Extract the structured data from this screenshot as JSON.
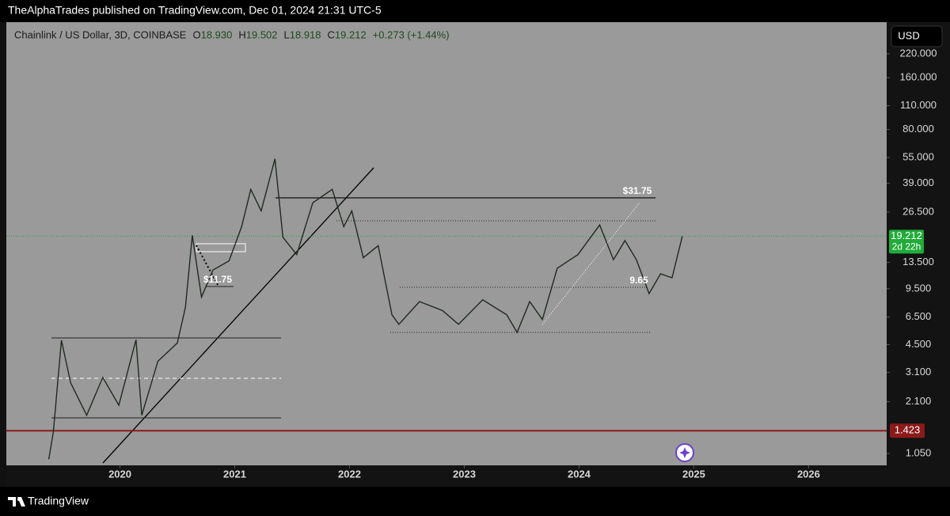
{
  "header": {
    "text": "TheAlphaTrades published on TradingView.com, Dec 01, 2024 21:31 UTC-5"
  },
  "chart_data": {
    "type": "line",
    "title": "Chainlink / US Dollar, 3D, COINBASE",
    "ohlc": [
      {
        "label": "O",
        "value": "18.930"
      },
      {
        "label": "H",
        "value": "19.502"
      },
      {
        "label": "L",
        "value": "18.918"
      },
      {
        "label": "C",
        "value": "19.212"
      }
    ],
    "change": "+0.273 (+1.44%)",
    "currency": "USD",
    "log_scale": true,
    "color": "#1f2a1f",
    "x": [
      2019.38,
      2019.42,
      2019.49,
      2019.57,
      2019.71,
      2019.85,
      2019.99,
      2020.14,
      2020.19,
      2020.33,
      2020.5,
      2020.57,
      2020.63,
      2020.71,
      2020.81,
      2020.95,
      2021.06,
      2021.14,
      2021.23,
      2021.35,
      2021.42,
      2021.54,
      2021.68,
      2021.85,
      2021.95,
      2022.02,
      2022.12,
      2022.25,
      2022.37,
      2022.43,
      2022.61,
      2022.81,
      2022.95,
      2023.16,
      2023.37,
      2023.46,
      2023.57,
      2023.68,
      2023.81,
      2023.99,
      2024.18,
      2024.3,
      2024.4,
      2024.5,
      2024.61,
      2024.71,
      2024.81,
      2024.9
    ],
    "values": [
      0.97,
      1.4,
      4.77,
      2.7,
      1.75,
      2.9,
      2.0,
      4.8,
      1.75,
      3.6,
      4.6,
      7.4,
      19.4,
      8.5,
      12.2,
      13.8,
      21.8,
      35.9,
      26.9,
      54,
      18.9,
      15,
      30,
      35.9,
      21.8,
      26.9,
      14.4,
      16.9,
      6.7,
      5.9,
      8.0,
      7.1,
      5.9,
      8.2,
      6.7,
      5.3,
      8.0,
      6.3,
      12.5,
      15,
      22.3,
      14,
      18.1,
      14,
      8.9,
      11.6,
      11,
      19.2
    ],
    "xlim": [
      2019.01,
      2026.68
    ],
    "xticks": [
      2020,
      2021,
      2022,
      2023,
      2024,
      2025,
      2026
    ],
    "ylim": [
      0.895,
      336
    ],
    "yticks": [
      {
        "value": 220,
        "label": "220.000"
      },
      {
        "value": 160,
        "label": "160.000"
      },
      {
        "value": 110,
        "label": "110.000"
      },
      {
        "value": 80,
        "label": "80.000"
      },
      {
        "value": 55,
        "label": "55.000"
      },
      {
        "value": 39,
        "label": "39.000"
      },
      {
        "value": 26.5,
        "label": "26.500"
      },
      {
        "value": 13.5,
        "label": "13.500"
      },
      {
        "value": 9.5,
        "label": "9.500"
      },
      {
        "value": 6.5,
        "label": "6.500"
      },
      {
        "value": 4.5,
        "label": "4.500"
      },
      {
        "value": 3.1,
        "label": "3.100"
      },
      {
        "value": 2.1,
        "label": "2.100"
      },
      {
        "value": 1.05,
        "label": "1.050"
      }
    ],
    "last_price": {
      "value": 19.212,
      "label": "19.212",
      "countdown": "2d 22h",
      "color": "#22ab3a"
    },
    "levels": [
      {
        "value": 1.423,
        "label": "1.423",
        "color": "#8b1a1a"
      }
    ],
    "annotations": [
      "$31.75",
      "$11.75",
      "9.65"
    ]
  },
  "footer": {
    "brand": "TradingView"
  }
}
